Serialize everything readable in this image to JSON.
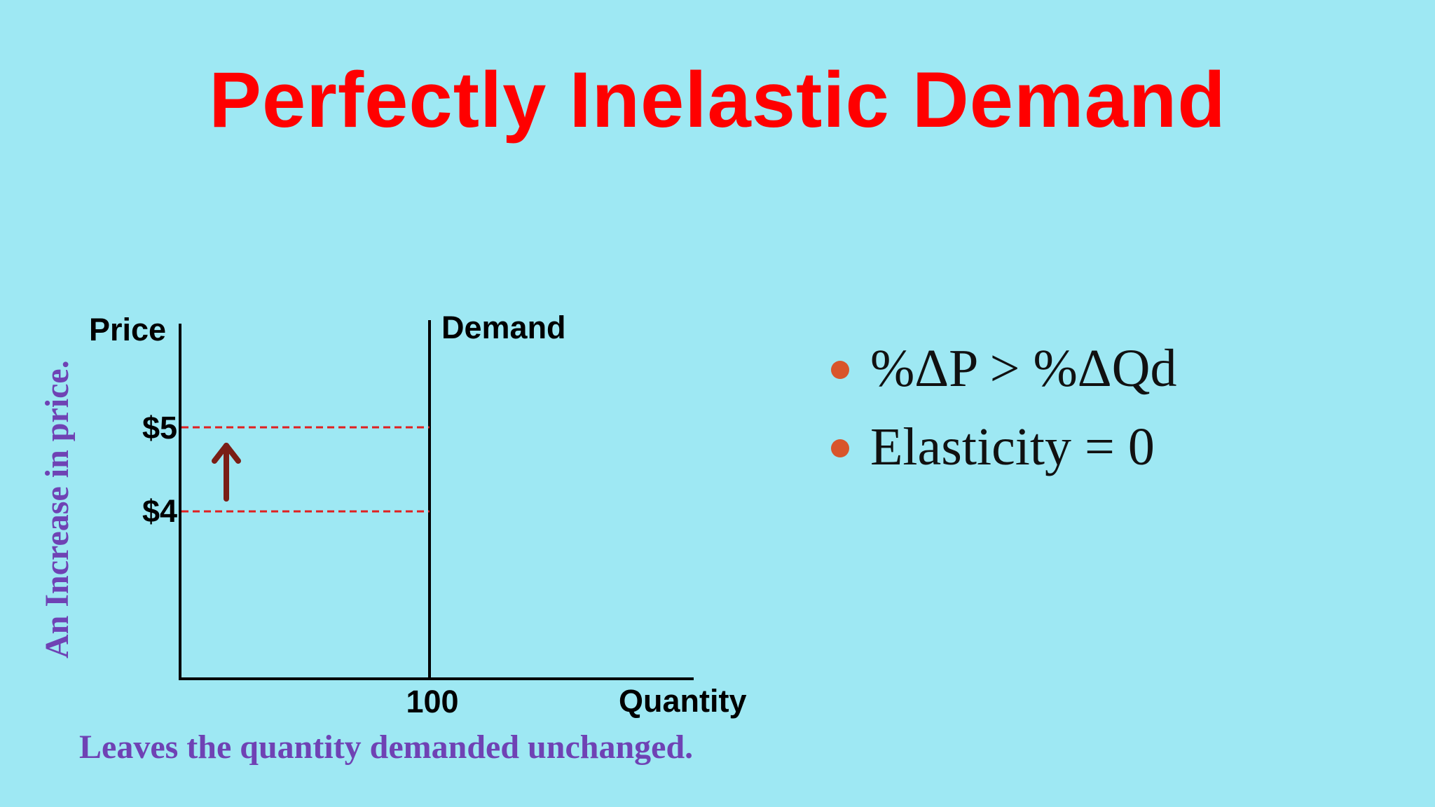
{
  "slide": {
    "title": "Perfectly Inelastic Demand",
    "background_color": "#9ee8f3",
    "title_color": "#ff0000"
  },
  "diagram": {
    "y_axis_label": "Price",
    "x_axis_label": "Quantity",
    "curve_label": "Demand",
    "quantity_tick": "100",
    "price_high_label": "$5",
    "price_low_label": "$4",
    "side_caption": "An Increase in price.",
    "bottom_caption": "Leaves the quantity demanded unchanged.",
    "guide_color": "#e02020",
    "arrow_color": "#7a1e16",
    "caption_color": "#6f42b4",
    "arrow_icon": "arrow-up-icon"
  },
  "bullets": {
    "items": [
      {
        "text": "%ΔP > %ΔQd"
      },
      {
        "text": "Elasticity = 0"
      }
    ],
    "bullet_color": "#d9552b"
  }
}
